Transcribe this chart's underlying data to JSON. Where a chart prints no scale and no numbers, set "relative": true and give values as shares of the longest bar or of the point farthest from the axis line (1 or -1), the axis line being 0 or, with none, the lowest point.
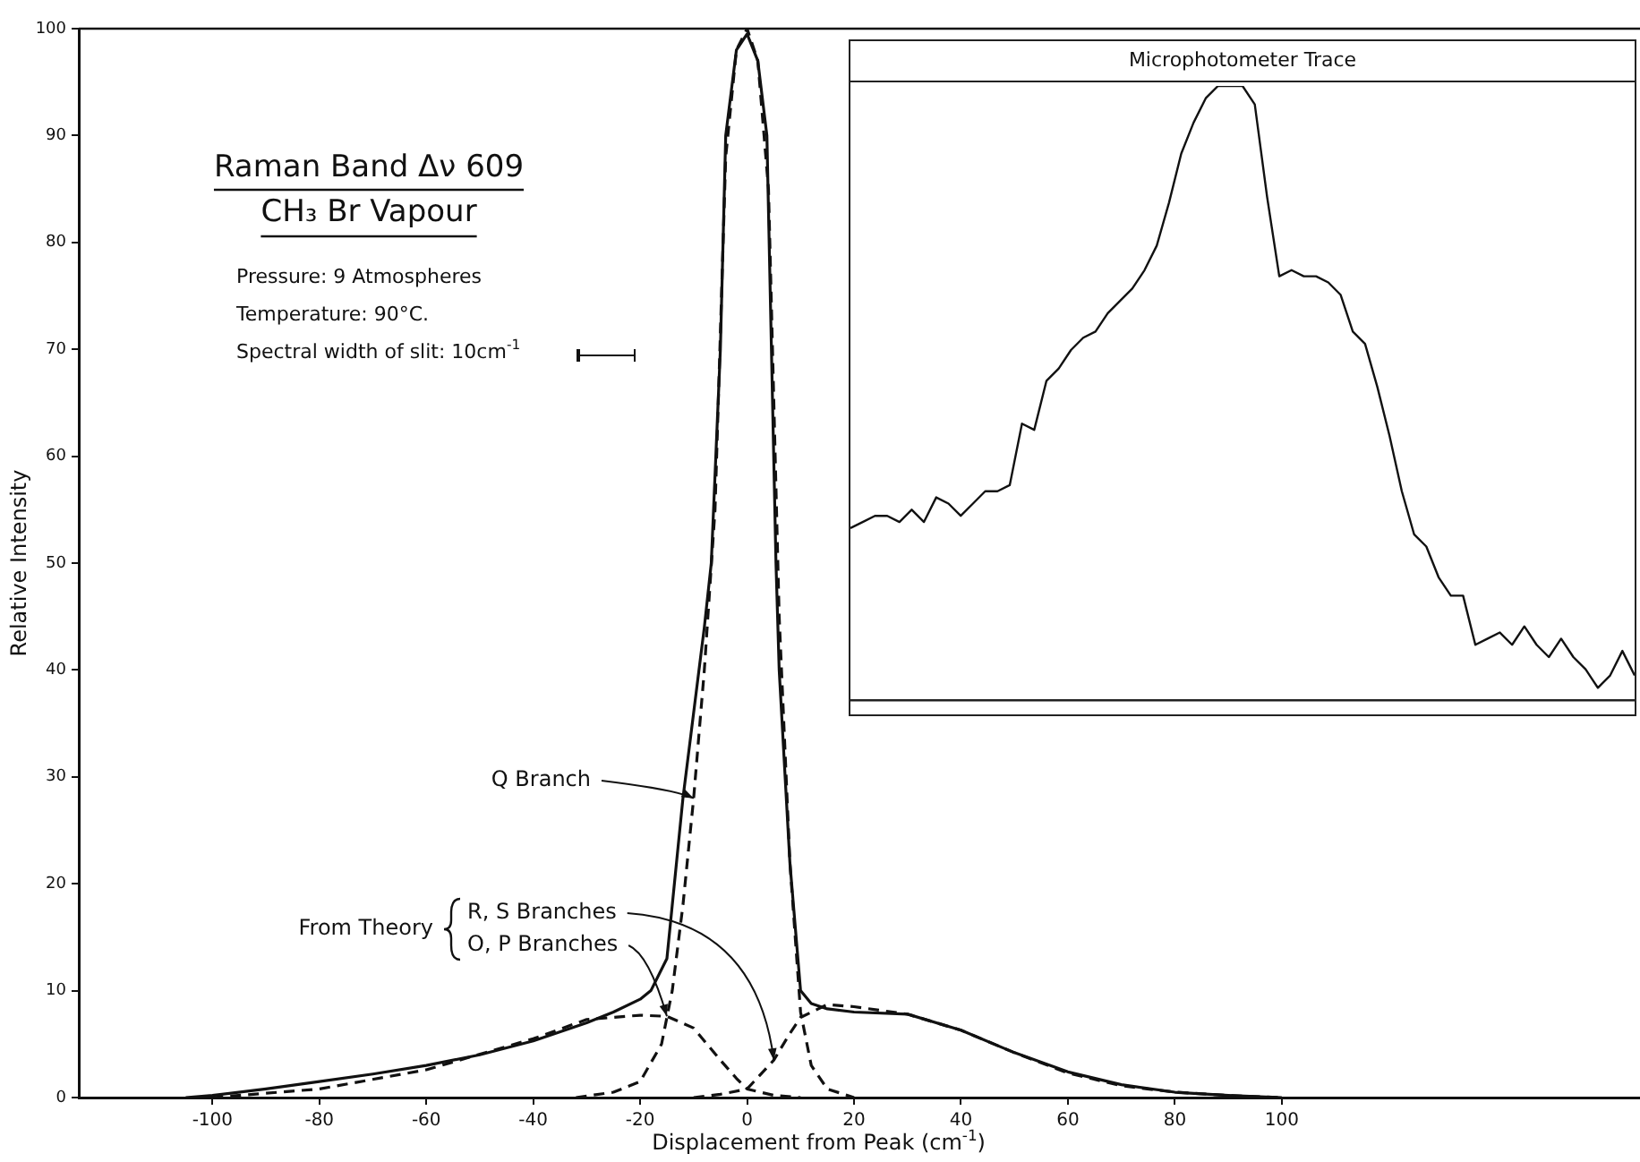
{
  "chart_data": [
    {
      "type": "line",
      "title": "Raman Band Δν 609",
      "subtitle": "CH₃ Br Vapour",
      "xlabel": "Displacement from Peak (cm$^{-1}$)",
      "ylabel": "Relative Intensity",
      "annotations": [
        "Pressure: 9 Atmospheres",
        "Temperature: 90°C.",
        "Spectral width of slit: 10cm$^{-1}$",
        "From Theory",
        {
          "text": "Q Branch",
          "x": -10,
          "y": 28
        },
        {
          "text": "R, S Branches",
          "x": 5,
          "y": 3.5
        },
        {
          "text": "O, P Branches",
          "x": -15,
          "y": 7.6
        }
      ],
      "xlim": [
        -125,
        167
      ],
      "xticks": [
        -100,
        -80,
        -60,
        -40,
        -20,
        0,
        20,
        40,
        60,
        80,
        100
      ],
      "ylim": [
        0,
        100
      ],
      "yticks": [
        0,
        10,
        20,
        30,
        40,
        50,
        60,
        70,
        80,
        90,
        100
      ],
      "grid": false,
      "marker": "none",
      "series": [
        {
          "color": "#111111",
          "line_style": "solid",
          "x": [
            -105,
            -100,
            -90,
            -80,
            -70,
            -60,
            -50,
            -40,
            -30,
            -25,
            -20,
            -18,
            -15,
            -12,
            -10,
            -8,
            -6.7,
            -5,
            -4,
            -2,
            0,
            2,
            3.7,
            5.4,
            6,
            8,
            10,
            12,
            15,
            20,
            30,
            40,
            50,
            60,
            70,
            80,
            90,
            100
          ],
          "values": [
            0,
            0.2,
            0.8,
            1.5,
            2.2,
            3,
            4,
            5.3,
            7,
            8,
            9.2,
            10,
            13,
            28,
            36,
            44,
            50,
            70,
            90,
            98,
            99.5,
            97,
            90,
            50,
            40,
            22,
            10,
            8.8,
            8.3,
            8,
            7.8,
            6.3,
            4.2,
            2.4,
            1.2,
            0.5,
            0.2,
            0
          ]
        },
        {
          "color": "#111111",
          "line_style": "dashed",
          "x": [
            -32,
            -25,
            -20,
            -16,
            -14,
            -12,
            -10,
            -8,
            -6,
            -4,
            -2,
            0,
            2,
            4,
            6,
            8,
            10,
            12,
            15,
            20
          ],
          "values": [
            0,
            0.5,
            1.5,
            5,
            10,
            18,
            28,
            40,
            55,
            88,
            98,
            100,
            97,
            85,
            45,
            22,
            8,
            3,
            0.8,
            0
          ]
        },
        {
          "color": "#111111",
          "line_style": "dashed",
          "x": [
            -10,
            -5,
            0,
            5,
            8,
            10,
            15,
            20,
            30,
            40,
            50,
            60,
            70,
            80,
            90,
            100
          ],
          "values": [
            0,
            0.3,
            0.8,
            3.5,
            6,
            7.5,
            8.7,
            8.5,
            7.8,
            6.3,
            4.2,
            2.3,
            1.1,
            0.5,
            0.2,
            0
          ]
        },
        {
          "color": "#111111",
          "line_style": "dashed",
          "x": [
            -100,
            -80,
            -60,
            -40,
            -30,
            -20,
            -15,
            -10,
            -5,
            -2,
            0,
            5,
            10
          ],
          "values": [
            0,
            0.8,
            2.6,
            5.5,
            7.3,
            7.7,
            7.6,
            6.5,
            3.5,
            1.8,
            0.8,
            0.2,
            0
          ]
        }
      ]
    },
    {
      "type": "line",
      "title": "Microphotometer Trace",
      "relative": true,
      "marker": "none",
      "categories": [
        null,
        null,
        null,
        null,
        null,
        null,
        null,
        null,
        null,
        null,
        null,
        null,
        null,
        null,
        null,
        null,
        null,
        null,
        null,
        null,
        null,
        null,
        null,
        null,
        null,
        null,
        null,
        null,
        null,
        null,
        null,
        null,
        null,
        null,
        null,
        null,
        null,
        null,
        null,
        null,
        null,
        null,
        null,
        null,
        null,
        null,
        null,
        null,
        null,
        null,
        null,
        null,
        null,
        null,
        null,
        null,
        null,
        null,
        null,
        null,
        null,
        null,
        null,
        null,
        null
      ],
      "series": [
        {
          "color": "#111111",
          "values": [
            0.28,
            0.29,
            0.3,
            0.3,
            0.29,
            0.31,
            0.29,
            0.33,
            0.32,
            0.3,
            0.32,
            0.34,
            0.34,
            0.35,
            0.45,
            0.44,
            0.52,
            0.54,
            0.57,
            0.59,
            0.6,
            0.63,
            0.65,
            0.67,
            0.7,
            0.74,
            0.81,
            0.89,
            0.94,
            0.98,
            1.0,
            1.0,
            1.0,
            0.97,
            0.82,
            0.69,
            0.7,
            0.69,
            0.69,
            0.68,
            0.66,
            0.6,
            0.58,
            0.51,
            0.43,
            0.34,
            0.27,
            0.25,
            0.2,
            0.17,
            0.17,
            0.09,
            0.1,
            0.11,
            0.09,
            0.12,
            0.09,
            0.07,
            0.1,
            0.07,
            0.05,
            0.02,
            0.04,
            0.08,
            0.04
          ]
        }
      ]
    }
  ]
}
